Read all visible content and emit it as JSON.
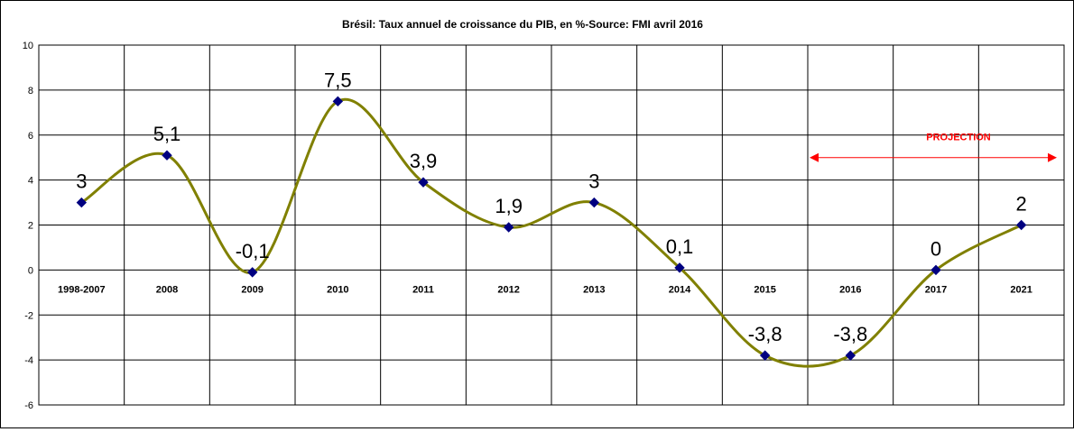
{
  "chart_data": {
    "type": "line",
    "title": "Brésil: Taux annuel de croissance du PIB, en %-Source: FMI avril 2016",
    "xlabel": "",
    "ylabel": "",
    "categories": [
      "1998-2007",
      "2008",
      "2009",
      "2010",
      "2011",
      "2012",
      "2013",
      "2014",
      "2015",
      "2016",
      "2017",
      "2021"
    ],
    "series": [
      {
        "values": [
          3,
          5.1,
          -0.1,
          7.5,
          3.9,
          1.9,
          3,
          0.1,
          -3.8,
          -3.8,
          0,
          2
        ]
      }
    ],
    "data_labels": [
      "3",
      "5,1",
      "-0,1",
      "7,5",
      "3,9",
      "1,9",
      "3",
      "0,1",
      "-3,8",
      "-3,8",
      "0",
      "2"
    ],
    "ylim": [
      -6,
      10
    ],
    "yticks": [
      -6,
      -4,
      -2,
      0,
      2,
      4,
      6,
      8,
      10
    ],
    "grid": true,
    "smooth": true,
    "line_color": "#808000",
    "marker_color": "#000080",
    "annotation": {
      "text": "PROJECTION",
      "color": "#ff0000",
      "from_category": "2016",
      "to_category": "2021"
    }
  }
}
